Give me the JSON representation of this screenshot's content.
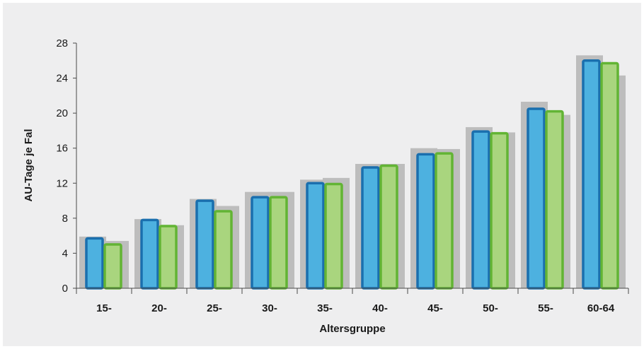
{
  "chart_data": {
    "type": "bar",
    "title": "",
    "xlabel": "Altersgruppe",
    "ylabel": "AU-Tage je Fal",
    "ylim": [
      0,
      28
    ],
    "yticks": [
      0,
      4,
      8,
      12,
      16,
      20,
      24,
      28
    ],
    "grid": false,
    "legend": "none",
    "categories": [
      "15-",
      "20-",
      "25-",
      "30-",
      "35-",
      "40-",
      "45-",
      "50-",
      "55-",
      "60-64"
    ],
    "series": [
      {
        "values": [
          5.9,
          7.9,
          10.2,
          11.0,
          12.4,
          14.2,
          16.0,
          18.4,
          21.3,
          26.6
        ],
        "color": "#bdbdbd"
      },
      {
        "values": [
          5.4,
          7.2,
          9.4,
          11.0,
          12.6,
          14.2,
          15.9,
          17.8,
          19.8,
          24.3
        ],
        "color": "#bdbdbd"
      },
      {
        "values": [
          5.7,
          7.8,
          10.0,
          10.4,
          12.0,
          13.8,
          15.3,
          17.9,
          20.5,
          26.0
        ],
        "color": "#4db1e0",
        "stroke": "#1a6fae"
      },
      {
        "values": [
          5.0,
          7.1,
          8.8,
          10.4,
          11.9,
          14.0,
          15.4,
          17.7,
          20.2,
          25.7
        ],
        "color": "#a9d57e",
        "stroke": "#62b434"
      }
    ]
  }
}
